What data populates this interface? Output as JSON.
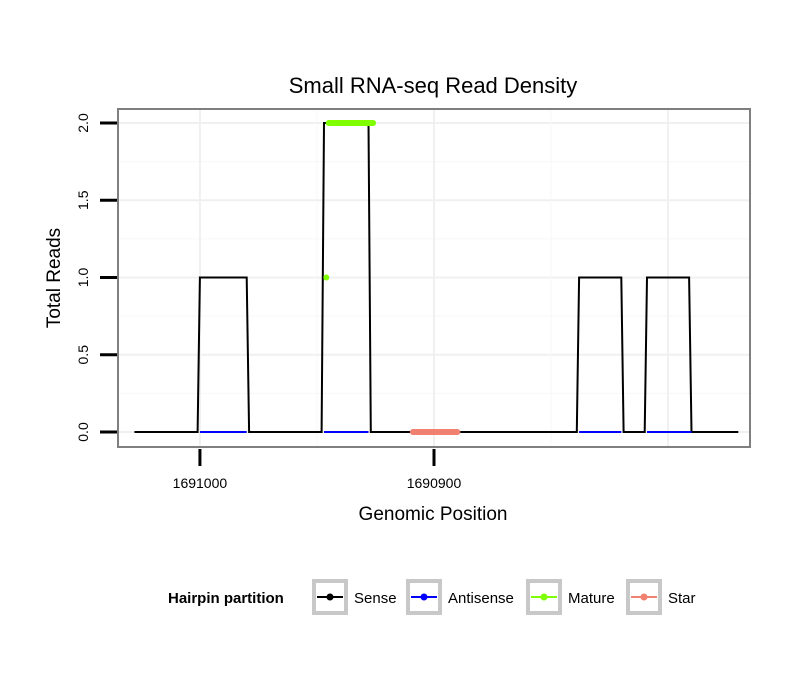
{
  "chart_data": {
    "type": "line",
    "title": "Small RNA-seq Read Density",
    "xlabel": "Genomic Position",
    "ylabel": "Total Reads",
    "x_reversed": true,
    "xlim": [
      1691035,
      1690765
    ],
    "ylim": [
      0,
      2
    ],
    "x_ticks": [
      {
        "value": 1691000,
        "label": "1691000"
      },
      {
        "value": 1690900,
        "label": "1690900"
      }
    ],
    "y_ticks": [
      {
        "value": 0,
        "label": "0.0"
      },
      {
        "value": 0.5,
        "label": "0.5"
      },
      {
        "value": 1,
        "label": "1.0"
      },
      {
        "value": 1.5,
        "label": "1.5"
      },
      {
        "value": 2,
        "label": "2.0"
      }
    ],
    "grid": true,
    "legend_position": "bottom",
    "legend_title": "Hairpin partition",
    "series": [
      {
        "name": "Sense",
        "color": "#000000",
        "x": [
          1691028,
          1691001,
          1691000,
          1690980,
          1690979,
          1690948,
          1690947,
          1690928,
          1690927,
          1690839,
          1690838,
          1690820,
          1690819,
          1690810,
          1690809,
          1690791,
          1690790,
          1690770
        ],
        "values": [
          0,
          0,
          1,
          1,
          0,
          0,
          2,
          2,
          0,
          0,
          1,
          1,
          0,
          0,
          1,
          1,
          0,
          0
        ]
      },
      {
        "name": "Antisense",
        "color": "#0000ff",
        "x": [
          1691000,
          1690980,
          1690947,
          1690928,
          1690838,
          1690820,
          1690809,
          1690790
        ],
        "values": [
          0,
          0,
          0,
          0,
          0,
          0,
          0,
          0
        ],
        "segments": [
          [
            0,
            1
          ],
          [
            2,
            3
          ],
          [
            4,
            5
          ],
          [
            6,
            7
          ]
        ]
      },
      {
        "name": "Mature",
        "color": "#7fff00",
        "x": [
          1690946,
          1690946,
          1690945,
          1690938,
          1690931,
          1690926
        ],
        "values": [
          1,
          1,
          2,
          2,
          2,
          2
        ],
        "segments": [
          [
            0,
            1
          ],
          [
            2,
            5
          ]
        ]
      },
      {
        "name": "Star",
        "color": "#f08070",
        "x": [
          1690909,
          1690900,
          1690890
        ],
        "values": [
          0,
          0,
          0
        ],
        "segments": [
          [
            0,
            2
          ]
        ]
      }
    ]
  }
}
